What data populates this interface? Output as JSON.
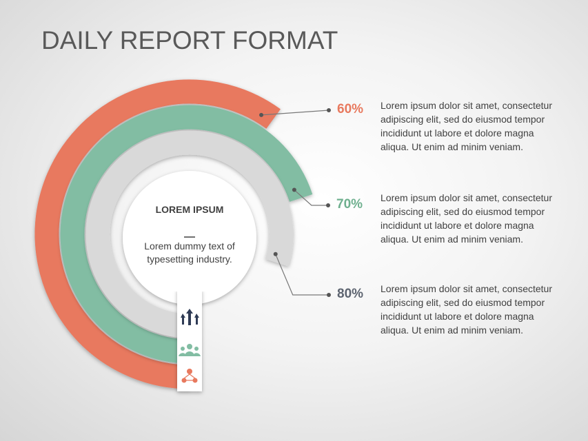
{
  "chart_data": {
    "type": "radial_bar",
    "title": "DAILY REPORT FORMAT",
    "center_title": "LOREM IPSUM",
    "center_text": "Lorem dummy text of typesetting industry.",
    "values": [
      60,
      70,
      80
    ],
    "value_labels": [
      "60%",
      "70%",
      "80%"
    ],
    "colors": [
      "#e8795e",
      "#82bda3",
      "#d9d9d9"
    ],
    "label_colors": [
      "#e8795e",
      "#6fb08f",
      "#5d6470"
    ],
    "descriptions": [
      "Lorem ipsum dolor sit amet, consectetur adipiscing elit, sed do eiusmod tempor incididunt ut labore et dolore magna aliqua. Ut enim ad minim veniam.",
      "Lorem ipsum dolor sit amet, consectetur adipiscing elit, sed do eiusmod tempor incididunt ut labore et dolore magna aliqua. Ut enim ad minim veniam.",
      "Lorem ipsum dolor sit amet, consectetur adipiscing elit, sed do eiusmod tempor incididunt ut labore et dolore magna aliqua. Ut enim ad minim veniam."
    ],
    "ylim": [
      0,
      100
    ]
  }
}
